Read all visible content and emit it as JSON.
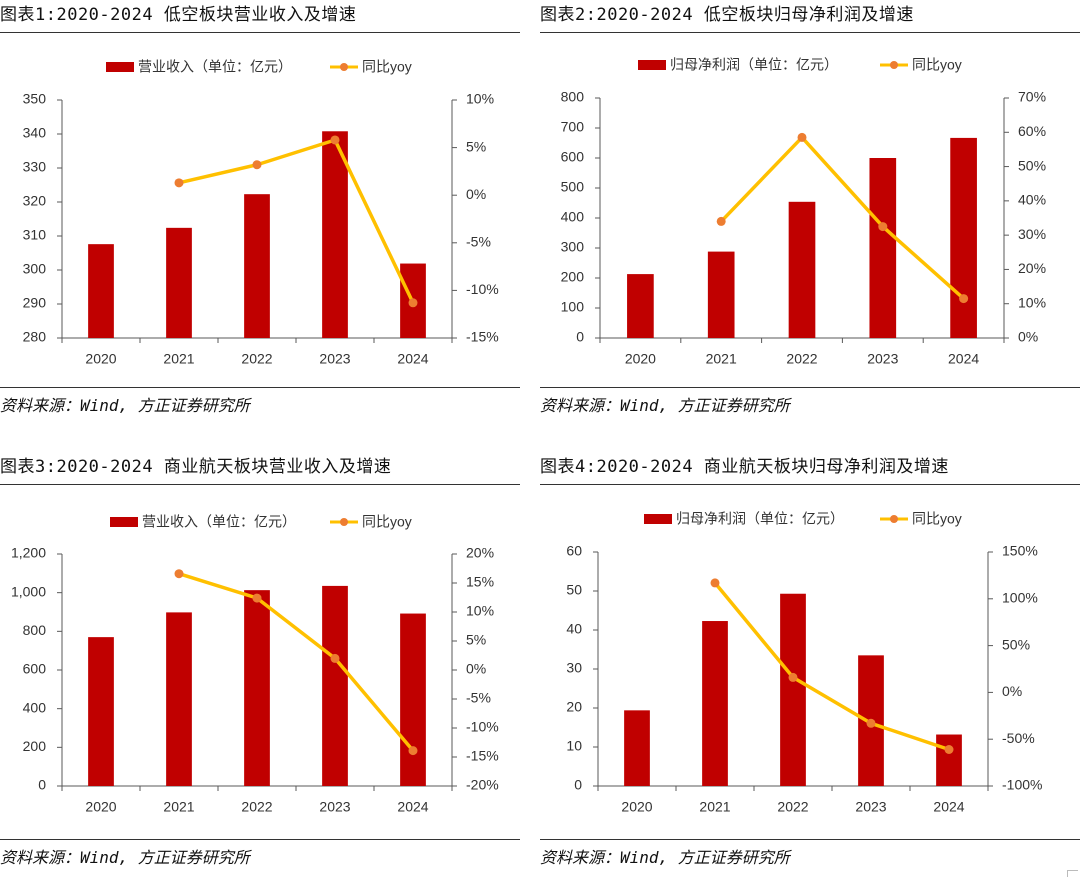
{
  "colors": {
    "bar": "#C00000",
    "line": "#FFC000",
    "marker": "#ED7D31",
    "axis": "#595959"
  },
  "panels": [
    {
      "title": "图表1:2020-2024 低空板块营业收入及增速",
      "source": "资料来源：Wind, 方正证券研究所",
      "chart_data": {
        "type": "bar",
        "categories": [
          "2020",
          "2021",
          "2022",
          "2023",
          "2024"
        ],
        "series": [
          {
            "name": "营业收入（单位：亿元）",
            "type": "bar",
            "axis": "left",
            "values": [
              307.6,
              312.4,
              322.3,
              340.8,
              301.9
            ]
          },
          {
            "name": "同比yoy",
            "type": "line",
            "axis": "right",
            "values": [
              null,
              1.3,
              3.2,
              5.8,
              -11.3
            ]
          }
        ],
        "y_left": {
          "range": [
            280,
            350
          ],
          "ticks": [
            "280",
            "290",
            "300",
            "310",
            "320",
            "330",
            "340",
            "350"
          ]
        },
        "y_right": {
          "range": [
            -15,
            10
          ],
          "ticks": [
            "-15%",
            "-10%",
            "-5%",
            "0%",
            "5%",
            "10%"
          ]
        },
        "legend": "top-center",
        "grid": false
      }
    },
    {
      "title": "图表2:2020-2024 低空板块归母净利润及增速",
      "source": "资料来源：Wind, 方正证券研究所",
      "chart_data": {
        "type": "bar",
        "categories": [
          "2020",
          "2021",
          "2022",
          "2023",
          "2024"
        ],
        "series": [
          {
            "name": "归母净利润（单位：亿元）",
            "type": "bar",
            "axis": "left",
            "values": [
              213,
              288,
              454,
              600,
              667
            ]
          },
          {
            "name": "同比yoy",
            "type": "line",
            "axis": "right",
            "values": [
              null,
              34,
              58.5,
              32.5,
              11.5
            ]
          }
        ],
        "y_left": {
          "range": [
            0,
            800
          ],
          "ticks": [
            "0",
            "100",
            "200",
            "300",
            "400",
            "500",
            "600",
            "700",
            "800"
          ]
        },
        "y_right": {
          "range": [
            0,
            70
          ],
          "ticks": [
            "0%",
            "10%",
            "20%",
            "30%",
            "40%",
            "50%",
            "60%",
            "70%"
          ]
        },
        "legend": "top-center",
        "grid": false
      }
    },
    {
      "title": "图表3:2020-2024 商业航天板块营业收入及增速",
      "source": "资料来源：Wind, 方正证券研究所",
      "chart_data": {
        "type": "bar",
        "categories": [
          "2020",
          "2021",
          "2022",
          "2023",
          "2024"
        ],
        "series": [
          {
            "name": "营业收入（单位：亿元）",
            "type": "bar",
            "axis": "left",
            "values": [
              770,
              898,
              1013,
              1035,
              892
            ]
          },
          {
            "name": "同比yoy",
            "type": "line",
            "axis": "right",
            "values": [
              null,
              16.6,
              12.4,
              2.0,
              -13.9
            ]
          }
        ],
        "y_left": {
          "range": [
            0,
            1200
          ],
          "ticks": [
            "0",
            "200",
            "400",
            "600",
            "800",
            "1,000",
            "1,200"
          ]
        },
        "y_right": {
          "range": [
            -20,
            20
          ],
          "ticks": [
            "-20%",
            "-15%",
            "-10%",
            "-5%",
            "0%",
            "5%",
            "10%",
            "15%",
            "20%"
          ]
        },
        "legend": "top-center",
        "grid": false
      }
    },
    {
      "title": "图表4:2020-2024 商业航天板块归母净利润及增速",
      "source": "资料来源：Wind, 方正证券研究所",
      "chart_data": {
        "type": "bar",
        "categories": [
          "2020",
          "2021",
          "2022",
          "2023",
          "2024"
        ],
        "series": [
          {
            "name": "归母净利润（单位：亿元）",
            "type": "bar",
            "axis": "left",
            "values": [
              19.4,
              42.3,
              49.3,
              33.5,
              13.2
            ]
          },
          {
            "name": "同比yoy",
            "type": "line",
            "axis": "right",
            "values": [
              null,
              117,
              16,
              -33,
              -61
            ]
          }
        ],
        "y_left": {
          "range": [
            0,
            60
          ],
          "ticks": [
            "0",
            "10",
            "20",
            "30",
            "40",
            "50",
            "60"
          ]
        },
        "y_right": {
          "range": [
            -100,
            150
          ],
          "ticks": [
            "-100%",
            "-50%",
            "0%",
            "50%",
            "100%",
            "150%"
          ]
        },
        "legend": "top-center",
        "grid": false
      }
    }
  ]
}
